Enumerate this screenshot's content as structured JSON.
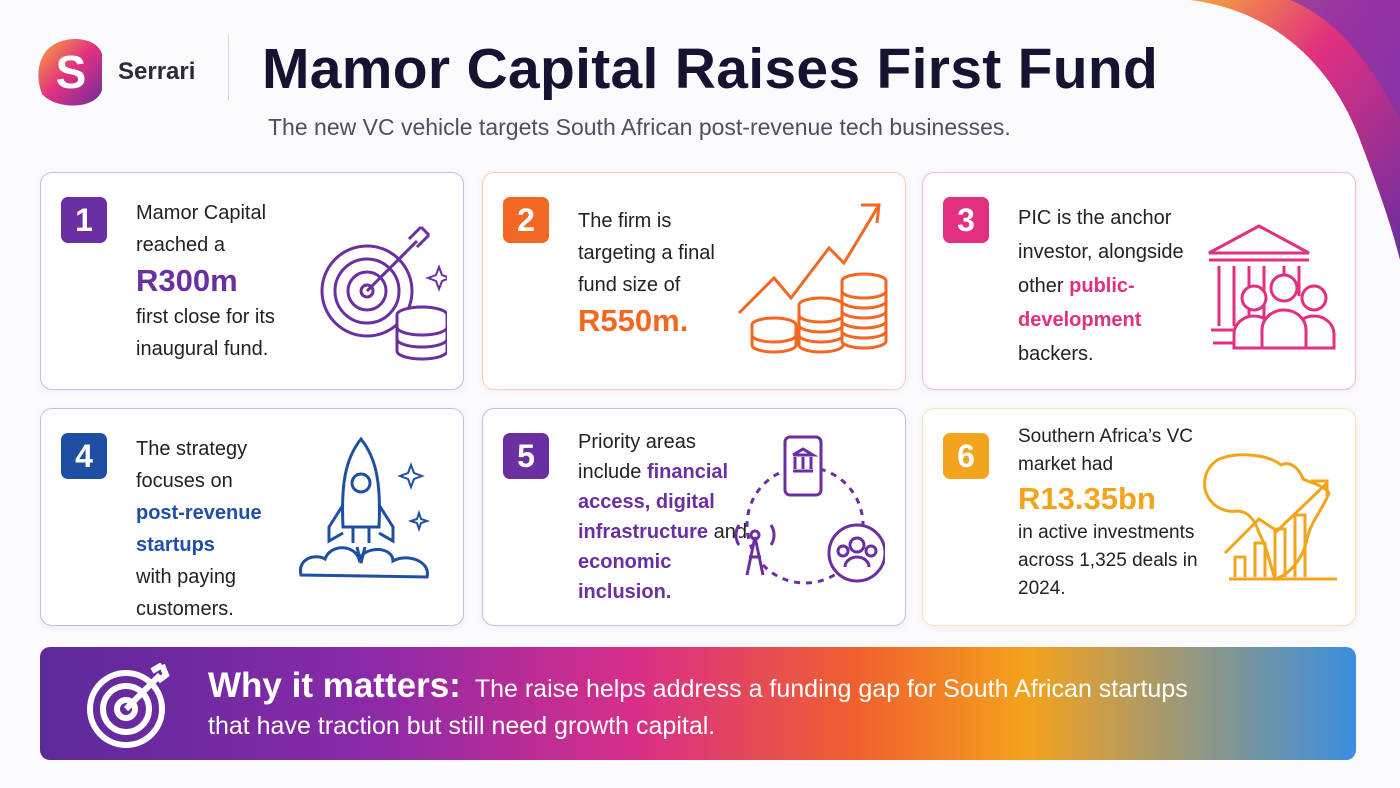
{
  "header": {
    "brand": "Serrari",
    "title": "Mamor Capital Raises First Fund",
    "subtitle": "The new VC vehicle targets South African post-revenue tech businesses."
  },
  "cards": [
    {
      "number": 1,
      "color": "#6a2fa0",
      "text": [
        "Mamor Capital reached a",
        "R300m",
        "first close for its inaugural fund."
      ]
    },
    {
      "number": 2,
      "color": "#f26722",
      "text": [
        "The firm is targeting a final fund size of",
        "R550m."
      ]
    },
    {
      "number": 3,
      "color": "#e1307f",
      "text": [
        "PIC is the anchor investor, alongside other",
        "public-development",
        "backers."
      ]
    },
    {
      "number": 4,
      "color": "#1f4fa3",
      "text": [
        "The strategy focuses on",
        "post-revenue startups",
        "with paying customers."
      ]
    },
    {
      "number": 5,
      "color": "#6a2fa0",
      "text": [
        "Priority areas include",
        "financial access",
        ",",
        "digital infrastructure",
        "and",
        "economic inclusion."
      ]
    },
    {
      "number": 6,
      "color": "#f2a51c",
      "text": [
        "Southern Africa’s VC market had",
        "R13.35bn",
        "in active investments across 1,325 deals in 2024."
      ]
    }
  ],
  "banner": {
    "heading": "Why it matters:",
    "text": "The raise helps address a funding gap for South African startups that have traction but still need growth capital."
  }
}
